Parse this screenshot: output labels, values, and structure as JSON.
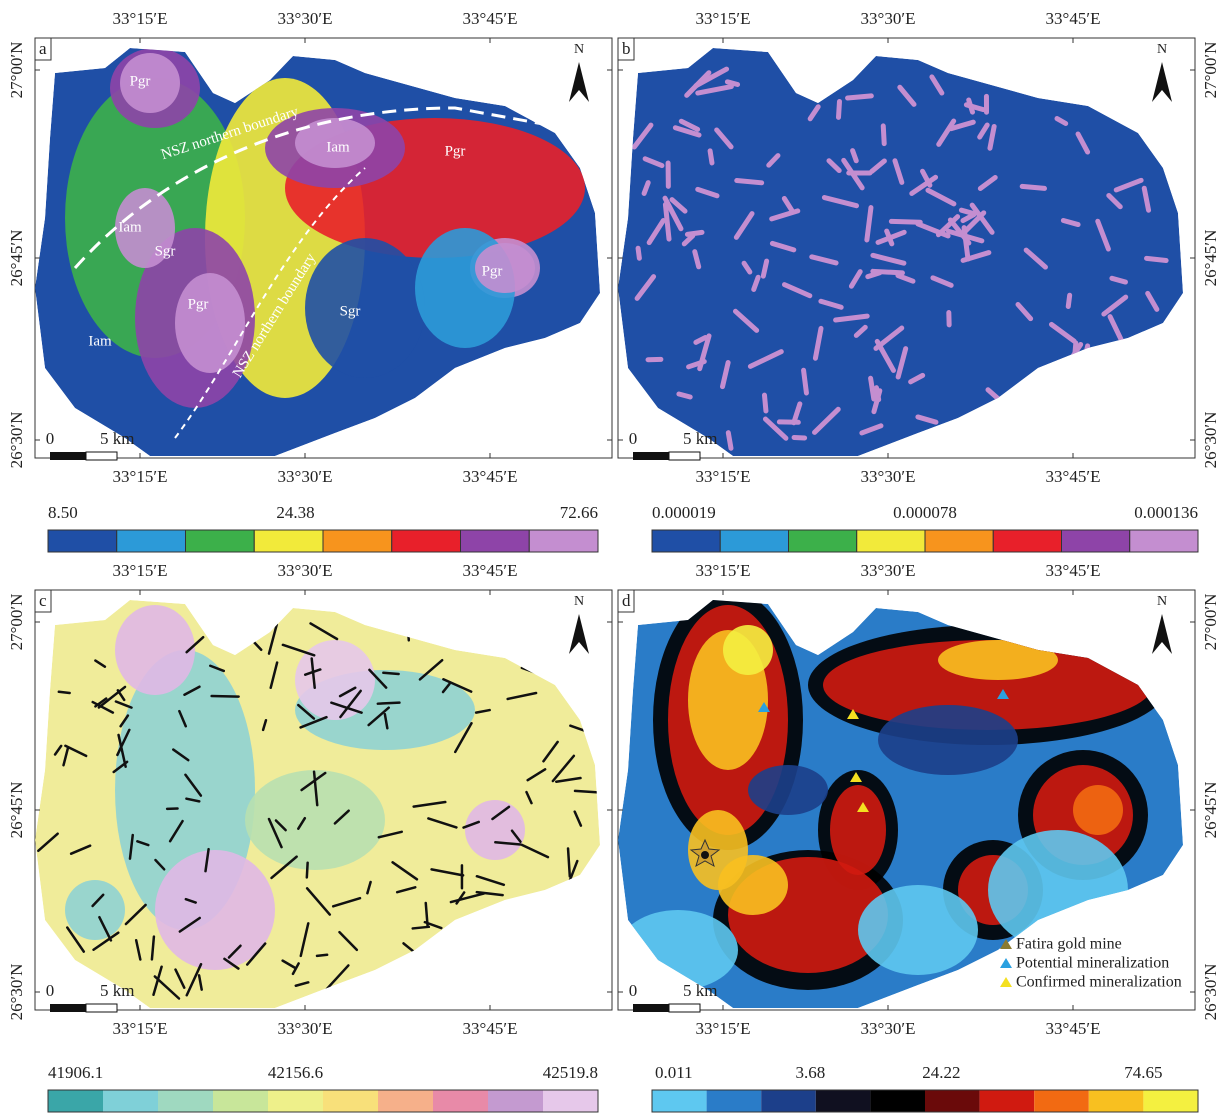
{
  "panels": [
    {
      "label": "a",
      "top_lon": [
        "33°15′E",
        "33°30′E",
        "33°45′E"
      ],
      "bottom_lon": [
        "33°15′E",
        "33°30′E",
        "33°45′E"
      ],
      "lat": [
        "27°00′N",
        "26°45′N",
        "26°30′N"
      ],
      "north": "N",
      "scale": [
        "0",
        "5 km"
      ],
      "colorbar": {
        "labels": [
          "8.50",
          "24.38",
          "72.66"
        ],
        "colors": [
          "#1f4fa6",
          "#2c9ad8",
          "#3cb04a",
          "#f2ea3a",
          "#f7941d",
          "#e8202a",
          "#8e44a8",
          "#c48ed0"
        ]
      },
      "map_labels": [
        "Pgr",
        "Iam",
        "Pgr",
        "Iam",
        "Sgr",
        "Pgr",
        "Pgr",
        "Sgr",
        "Iam",
        "NSZ northern boundary",
        "NSZ northern boundary"
      ]
    },
    {
      "label": "b",
      "top_lon": [
        "33°15′E",
        "33°30′E",
        "33°45′E"
      ],
      "bottom_lon": [
        "33°15′E",
        "33°30′E",
        "33°45′E"
      ],
      "lat": [
        "27°00′N",
        "26°45′N",
        "26°30′N"
      ],
      "north": "N",
      "scale": [
        "0",
        "5 km"
      ],
      "colorbar": {
        "labels": [
          "0.000019",
          "0.000078",
          "0.000136"
        ],
        "colors": [
          "#1f4fa6",
          "#2c9ad8",
          "#3cb04a",
          "#f2ea3a",
          "#f7941d",
          "#e8202a",
          "#8e44a8",
          "#c48ed0"
        ]
      }
    },
    {
      "label": "c",
      "top_lon": [
        "33°15′E",
        "33°30′E",
        "33°45′E"
      ],
      "bottom_lon": [
        "33°15′E",
        "33°30′E",
        "33°45′E"
      ],
      "lat": [
        "27°00′N",
        "26°45′N",
        "26°30′N"
      ],
      "north": "N",
      "scale": [
        "0",
        "5 km"
      ],
      "colorbar": {
        "labels": [
          "41906.1",
          "42156.6",
          "42519.8"
        ],
        "colors": [
          "#3aa6a8",
          "#7fd0d8",
          "#9fd9c0",
          "#c8e69a",
          "#eef08a",
          "#f8e07a",
          "#f6b08a",
          "#e88aa8",
          "#c49ad0",
          "#e6c8ea"
        ]
      }
    },
    {
      "label": "d",
      "top_lon": [
        "33°15′E",
        "33°30′E",
        "33°45′E"
      ],
      "bottom_lon": [
        "33°15′E",
        "33°30′E",
        "33°45′E"
      ],
      "lat": [
        "27°00′N",
        "26°45′N",
        "26°30′N"
      ],
      "north": "N",
      "scale": [
        "0",
        "5 km"
      ],
      "colorbar": {
        "labels": [
          "0.011",
          "3.68",
          "24.22",
          "74.65"
        ],
        "colors": [
          "#5ec8f0",
          "#2a7cc8",
          "#1c3f8a",
          "#101020",
          "#000000",
          "#6a0a0a",
          "#d01a10",
          "#f26a12",
          "#f8c020",
          "#f4f040"
        ]
      },
      "legend": [
        "Fatira gold mine",
        "Potential mineralization",
        "Confirmed mineralization"
      ]
    }
  ]
}
